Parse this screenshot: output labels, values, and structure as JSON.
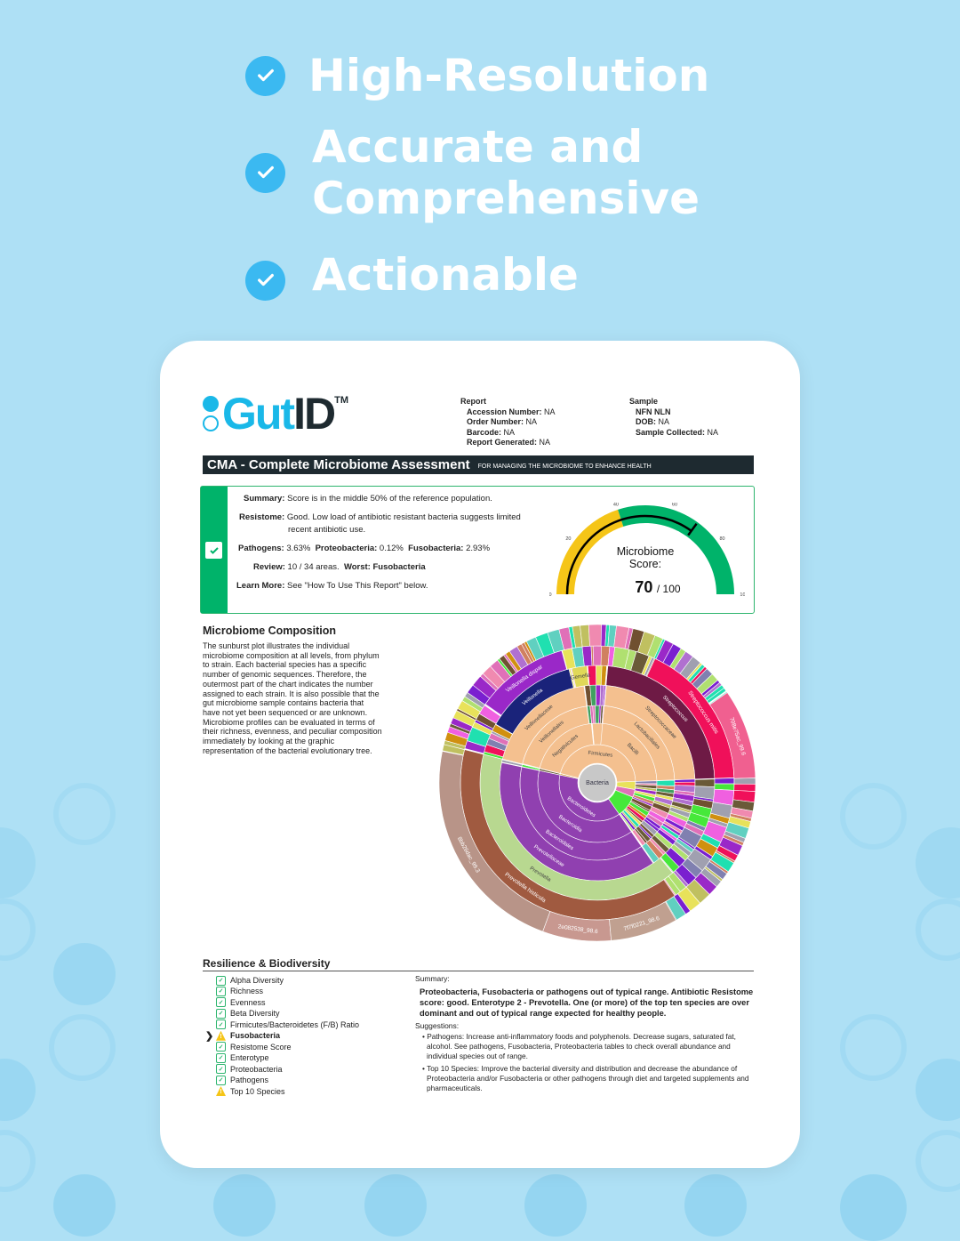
{
  "headlines": [
    "High-Resolution",
    "Accurate and",
    "Comprehensive",
    "Actionable"
  ],
  "colors": {
    "background": "#aee0f5",
    "check": "#3bb9f1",
    "brand": "#1ab8e8",
    "dark": "#1e2a30",
    "good": "#2db56e",
    "warn": "#f5c518"
  },
  "logo": {
    "text_a": "Gut",
    "text_b": "ID",
    "tm": "TM"
  },
  "report": {
    "heading": "Report",
    "fields": [
      {
        "label": "Accession Number:",
        "value": "NA"
      },
      {
        "label": "Order Number:",
        "value": "NA"
      },
      {
        "label": "Barcode:",
        "value": "NA"
      },
      {
        "label": "Report Generated:",
        "value": "NA"
      }
    ]
  },
  "sample": {
    "heading": "Sample",
    "name": "NFN NLN",
    "fields": [
      {
        "label": "DOB:",
        "value": "NA"
      },
      {
        "label": "Sample Collected:",
        "value": "NA"
      }
    ]
  },
  "banner": {
    "title": "CMA - Complete Microbiome Assessment",
    "subtitle": "FOR MANAGING THE MICROBIOME TO ENHANCE HEALTH"
  },
  "summary": {
    "summary_label": "Summary:",
    "summary_text": "Score is in the middle 50% of the reference population.",
    "resistome_label": "Resistome:",
    "resistome_text_1": "Good. Low load of antibiotic resistant bacteria suggests limited",
    "resistome_text_2": "recent antibiotic use.",
    "pathogens_label": "Pathogens:",
    "pathogens_value": "3.63%",
    "proteo_label": "Proteobacteria:",
    "proteo_value": "0.12%",
    "fuso_label": "Fusobacteria:",
    "fuso_value": "2.93%",
    "review_label": "Review:",
    "review_value": "10 / 34 areas.",
    "worst_label": "Worst:",
    "worst_value": "Fusobacteria",
    "learn_label": "Learn More:",
    "learn_text": "See \"How To Use This Report\" below."
  },
  "gauge": {
    "title_1": "Microbiome",
    "title_2": "Score:",
    "score": 70,
    "score_text": "70",
    "max_text": "/ 100",
    "ticks": [
      "0",
      "20",
      "40",
      "60",
      "80",
      "100"
    ],
    "yellow_until": 40
  },
  "composition": {
    "heading": "Microbiome Composition",
    "text": "The sunburst plot illustrates the individual microbiome composition at all levels, from phylum to strain. Each bacterial species has a specific number of genomic sequences. Therefore, the outermost part of the chart indicates the number assigned to each strain. It is also possible that the gut microbiome sample contains bacteria that have not yet been sequenced or are unknown. Microbiome profiles can be evaluated in terms of their richness, evenness, and peculiar composition immediately by looking at the graphic representation of the bacterial evolutionary tree."
  },
  "chart_data": {
    "type": "sunburst",
    "root": "Bacteria",
    "segments": [
      {
        "level": 1,
        "start": 78.9,
        "share": 45.5,
        "color": "#f4c08f",
        "label": "Firmicutes"
      },
      {
        "level": 1,
        "start": 24.4,
        "share": 3.4,
        "color": "#e8e25a",
        "label": ""
      },
      {
        "level": 1,
        "start": 27.8,
        "share": 3.3,
        "color": "#e070b8",
        "label": ""
      },
      {
        "level": 1,
        "start": 31.1,
        "share": 9.2,
        "color": "#46e83a",
        "label": ""
      },
      {
        "level": 1,
        "start": 40.3,
        "share": 38.0,
        "color": "#9040b0",
        "label": "Bacteroidetes"
      },
      {
        "level": 2,
        "start": 78.9,
        "share": 19.5,
        "color": "#f4c08f",
        "label": "Negativicutes"
      },
      {
        "level": 2,
        "start": 98.6,
        "share": 3.0,
        "color": "#f4c08f",
        "label": ""
      },
      {
        "level": 2,
        "start": 1.4,
        "share": 23.0,
        "color": "#f4c08f",
        "label": "Bacilli"
      },
      {
        "level": 2,
        "start": 40.3,
        "share": 38.0,
        "color": "#9040b0",
        "label": "Bacteroidia"
      },
      {
        "level": 3,
        "start": 78.9,
        "share": 18.9,
        "color": "#f4c08f",
        "label": "Veillonellales"
      },
      {
        "level": 3,
        "start": 1.4,
        "share": 23.0,
        "color": "#f4c08f",
        "label": "Lactobacillales"
      },
      {
        "level": 3,
        "start": 40.3,
        "share": 38.0,
        "color": "#9040b0",
        "label": "Bacteroidales"
      },
      {
        "level": 4,
        "start": 78.9,
        "share": 18.9,
        "color": "#f4c08f",
        "label": "Veillonellaceae"
      },
      {
        "level": 4,
        "start": 1.4,
        "share": 23.0,
        "color": "#f4c08f",
        "label": "Streptococcaceae"
      },
      {
        "level": 4,
        "start": 40.3,
        "share": 38.0,
        "color": "#9040b0",
        "label": "Prevotellaceae"
      },
      {
        "level": 5,
        "start": 83.3,
        "share": 12.8,
        "color": "#1a237a",
        "label": "Veillonella"
      },
      {
        "level": 5,
        "start": 96.4,
        "share": 2.2,
        "color": "#e0d858",
        "label": "Gemella"
      },
      {
        "level": 5,
        "start": 1.4,
        "share": 23.0,
        "color": "#6e1a45",
        "label": "Streptococcus"
      },
      {
        "level": 5,
        "start": 38.9,
        "share": 40.0,
        "color": "#b8d890",
        "label": "Prevotella"
      },
      {
        "level": 6,
        "start": 84.7,
        "share": 11.1,
        "color": "#9a28c8",
        "label": "Veillonella dispar"
      },
      {
        "level": 6,
        "start": 6.9,
        "share": 17.5,
        "color": "#f0105a",
        "label": "Streptococcus mitis"
      },
      {
        "level": 6,
        "start": 40.3,
        "share": 38.6,
        "color": "#a05a40",
        "label": "Prevotella histicola"
      },
      {
        "level": 7,
        "start": 55.6,
        "share": 22.6,
        "color": "#b89488",
        "label": "8bb26dac_99.3"
      },
      {
        "level": 7,
        "start": 48.6,
        "share": 7.0,
        "color": "#c89890",
        "label": "2e082538_98.6"
      },
      {
        "level": 7,
        "start": 41.7,
        "share": 6.9,
        "color": "#c0a090",
        "label": "7f7f0221_98.6"
      },
      {
        "level": 7,
        "start": 15.3,
        "share": 9.2,
        "color": "#f06090",
        "label": "708e75ac_99.6"
      }
    ]
  },
  "resilience": {
    "heading": "Resilience & Biodiversity",
    "items": [
      {
        "label": "Alpha Diversity",
        "status": "good"
      },
      {
        "label": "Richness",
        "status": "good"
      },
      {
        "label": "Evenness",
        "status": "good"
      },
      {
        "label": "Beta Diversity",
        "status": "good"
      },
      {
        "label": "Firmicutes/Bacteroidetes (F/B) Ratio",
        "status": "good"
      },
      {
        "label": "Fusobacteria",
        "status": "warn",
        "selected": true
      },
      {
        "label": "Resistome Score",
        "status": "good"
      },
      {
        "label": "Enterotype",
        "status": "good"
      },
      {
        "label": "Proteobacteria",
        "status": "good"
      },
      {
        "label": "Pathogens",
        "status": "good"
      },
      {
        "label": "Top 10 Species",
        "status": "warn"
      }
    ],
    "summary_label": "Summary:",
    "summary_text": "Proteobacteria, Fusobacteria or pathogens out of typical range. Antibiotic Resistome score: good. Enterotype 2 - Prevotella. One (or more) of the top ten species are over dominant and out of typical range expected for healthy people.",
    "suggestions_label": "Suggestions:",
    "suggestions": [
      "Pathogens: Increase anti-inflammatory foods and polyphenols. Decrease sugars, saturated fat, alcohol. See pathogens, Fusobacteria, Proteobacteria tables to check overall abundance and individual species out of range.",
      "Top 10 Species: Improve the bacterial diversity and distribution and decrease the abundance of Proteobacteria and/or Fusobacteria or other pathogens through diet and targeted supplements and pharmaceuticals."
    ]
  }
}
